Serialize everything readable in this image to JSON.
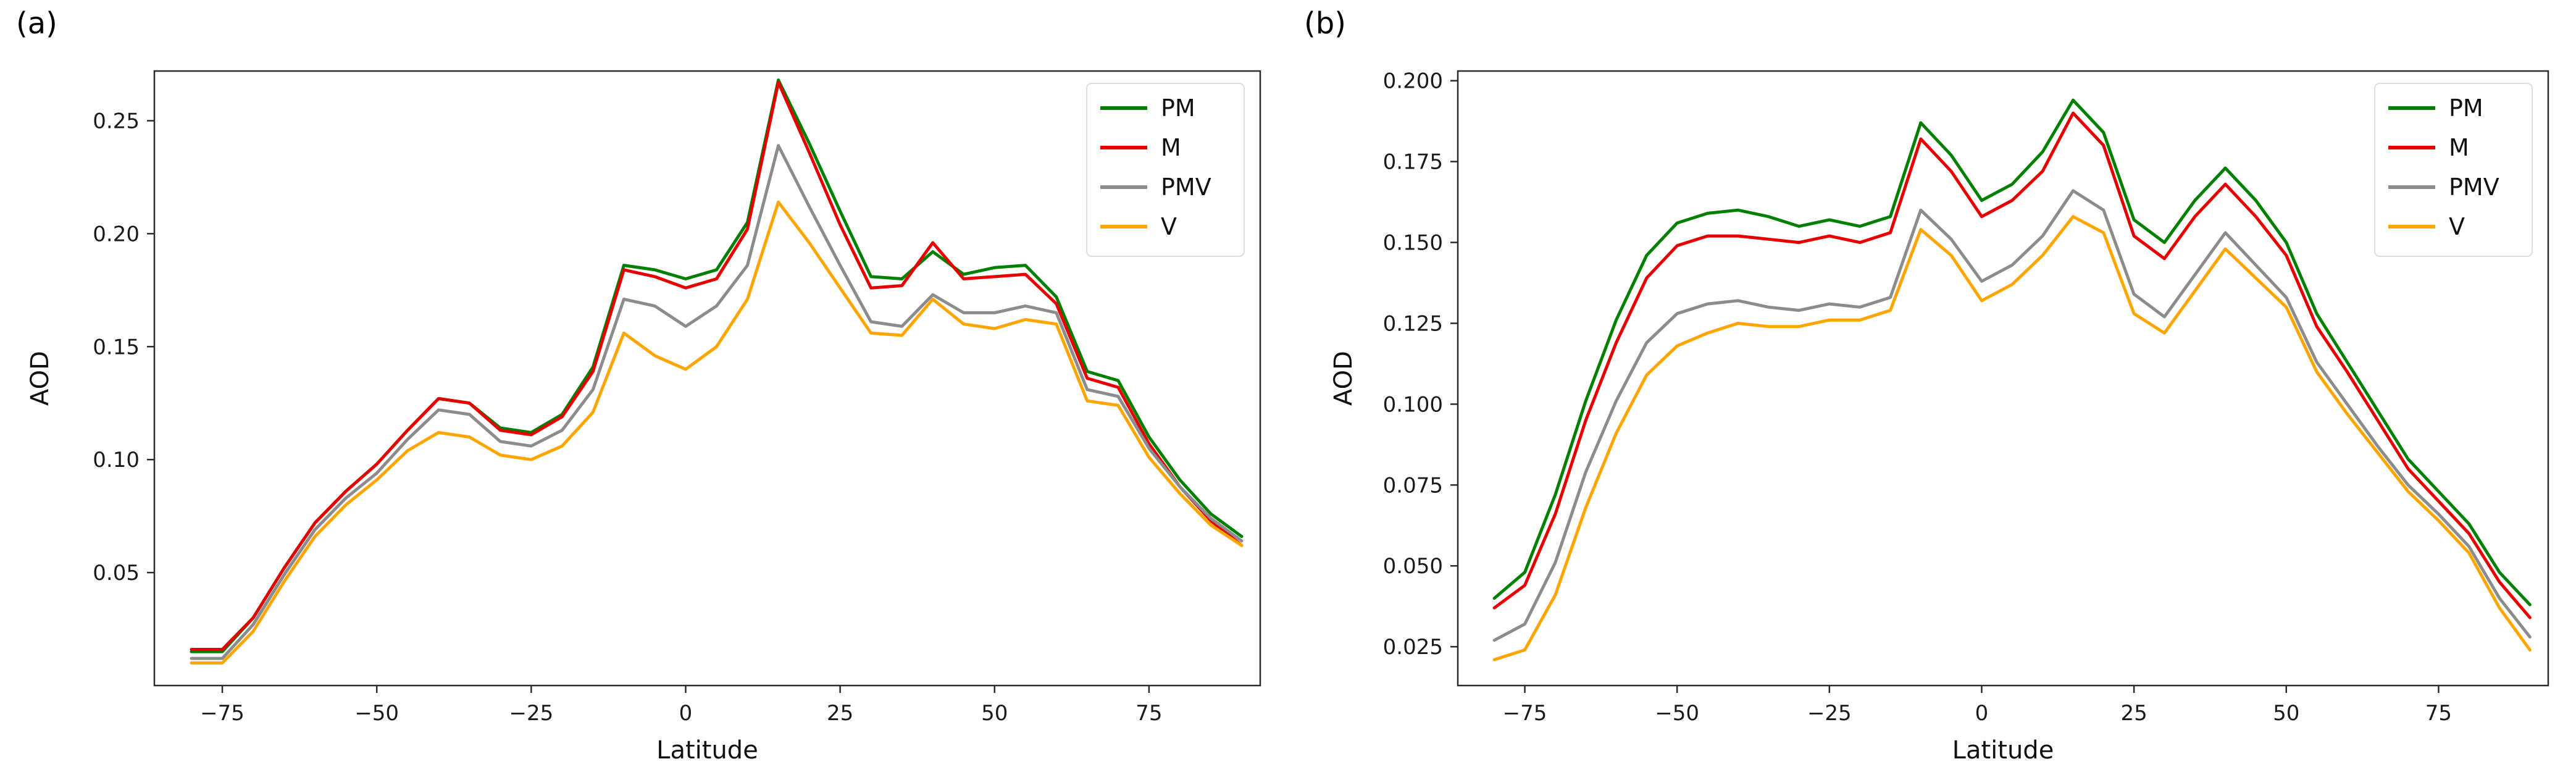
{
  "chart_data": [
    {
      "type": "line",
      "panel_label": "(a)",
      "title": "",
      "xlabel": "Latitude",
      "ylabel": "AOD",
      "xlim": [
        -86,
        93
      ],
      "ylim": [
        0.0,
        0.272
      ],
      "grid": false,
      "legend_position": "upper right",
      "xticks": [
        -75,
        -50,
        -25,
        0,
        25,
        50,
        75
      ],
      "xtick_labels": [
        "−75",
        "−50",
        "−25",
        "0",
        "25",
        "50",
        "75"
      ],
      "yticks": [
        0.05,
        0.1,
        0.15,
        0.2,
        0.25
      ],
      "ytick_labels": [
        "0.05",
        "0.10",
        "0.15",
        "0.20",
        "0.25"
      ],
      "margin": {
        "l": 250,
        "r": 45,
        "t": 115,
        "b": 140
      },
      "x": [
        -80,
        -75,
        -70,
        -65,
        -60,
        -55,
        -50,
        -45,
        -40,
        -35,
        -30,
        -25,
        -20,
        -15,
        -10,
        -5,
        0,
        5,
        10,
        15,
        20,
        25,
        30,
        35,
        40,
        45,
        50,
        55,
        60,
        65,
        70,
        75,
        80,
        85,
        90
      ],
      "series": [
        {
          "name": "PM",
          "color": "#008000",
          "values": [
            0.015,
            0.015,
            0.03,
            0.052,
            0.072,
            0.086,
            0.098,
            0.113,
            0.127,
            0.125,
            0.114,
            0.112,
            0.12,
            0.141,
            0.186,
            0.184,
            0.18,
            0.184,
            0.205,
            0.268,
            0.24,
            0.21,
            0.181,
            0.18,
            0.192,
            0.182,
            0.185,
            0.186,
            0.172,
            0.139,
            0.135,
            0.11,
            0.091,
            0.076,
            0.066
          ]
        },
        {
          "name": "M",
          "color": "#e60000",
          "values": [
            0.016,
            0.016,
            0.03,
            0.052,
            0.072,
            0.086,
            0.098,
            0.113,
            0.127,
            0.125,
            0.113,
            0.111,
            0.119,
            0.139,
            0.184,
            0.181,
            0.176,
            0.18,
            0.202,
            0.267,
            0.236,
            0.204,
            0.176,
            0.177,
            0.196,
            0.18,
            0.181,
            0.182,
            0.169,
            0.136,
            0.132,
            0.107,
            0.088,
            0.073,
            0.062
          ]
        },
        {
          "name": "PMV",
          "color": "#8c8c8c",
          "values": [
            0.012,
            0.012,
            0.027,
            0.049,
            0.069,
            0.083,
            0.094,
            0.109,
            0.122,
            0.12,
            0.108,
            0.106,
            0.113,
            0.131,
            0.171,
            0.168,
            0.159,
            0.168,
            0.186,
            0.239,
            0.212,
            0.186,
            0.161,
            0.159,
            0.173,
            0.165,
            0.165,
            0.168,
            0.165,
            0.131,
            0.128,
            0.105,
            0.088,
            0.074,
            0.064
          ]
        },
        {
          "name": "V",
          "color": "#ffa500",
          "values": [
            0.01,
            0.01,
            0.024,
            0.046,
            0.066,
            0.08,
            0.091,
            0.104,
            0.112,
            0.11,
            0.102,
            0.1,
            0.106,
            0.121,
            0.156,
            0.146,
            0.14,
            0.15,
            0.171,
            0.214,
            0.196,
            0.176,
            0.156,
            0.155,
            0.171,
            0.16,
            0.158,
            0.162,
            0.16,
            0.126,
            0.124,
            0.101,
            0.085,
            0.071,
            0.062
          ]
        }
      ]
    },
    {
      "type": "line",
      "panel_label": "(b)",
      "title": "",
      "xlabel": "Latitude",
      "ylabel": "AOD",
      "xlim": [
        -86,
        93
      ],
      "ylim": [
        0.013,
        0.203
      ],
      "grid": false,
      "legend_position": "upper right",
      "xticks": [
        -75,
        -50,
        -25,
        0,
        25,
        50,
        75
      ],
      "xtick_labels": [
        "−75",
        "−50",
        "−25",
        "0",
        "25",
        "50",
        "75"
      ],
      "yticks": [
        0.025,
        0.05,
        0.075,
        0.1,
        0.125,
        0.15,
        0.175,
        0.2
      ],
      "ytick_labels": [
        "0.025",
        "0.050",
        "0.075",
        "0.100",
        "0.125",
        "0.150",
        "0.175",
        "0.200"
      ],
      "margin": {
        "l": 275,
        "r": 45,
        "t": 115,
        "b": 140
      },
      "x": [
        -80,
        -75,
        -70,
        -65,
        -60,
        -55,
        -50,
        -45,
        -40,
        -35,
        -30,
        -25,
        -20,
        -15,
        -10,
        -5,
        0,
        5,
        10,
        15,
        20,
        25,
        30,
        35,
        40,
        45,
        50,
        55,
        60,
        65,
        70,
        75,
        80,
        85,
        90
      ],
      "series": [
        {
          "name": "PM",
          "color": "#008000",
          "values": [
            0.04,
            0.048,
            0.072,
            0.101,
            0.126,
            0.146,
            0.156,
            0.159,
            0.16,
            0.158,
            0.155,
            0.157,
            0.155,
            0.158,
            0.187,
            0.177,
            0.163,
            0.168,
            0.178,
            0.194,
            0.184,
            0.157,
            0.15,
            0.163,
            0.173,
            0.163,
            0.15,
            0.128,
            0.113,
            0.098,
            0.083,
            0.073,
            0.063,
            0.048,
            0.038
          ]
        },
        {
          "name": "M",
          "color": "#e60000",
          "values": [
            0.037,
            0.044,
            0.066,
            0.095,
            0.119,
            0.139,
            0.149,
            0.152,
            0.152,
            0.151,
            0.15,
            0.152,
            0.15,
            0.153,
            0.182,
            0.172,
            0.158,
            0.163,
            0.172,
            0.19,
            0.18,
            0.152,
            0.145,
            0.158,
            0.168,
            0.158,
            0.146,
            0.124,
            0.11,
            0.095,
            0.08,
            0.07,
            0.06,
            0.045,
            0.034
          ]
        },
        {
          "name": "PMV",
          "color": "#8c8c8c",
          "values": [
            0.027,
            0.032,
            0.051,
            0.079,
            0.101,
            0.119,
            0.128,
            0.131,
            0.132,
            0.13,
            0.129,
            0.131,
            0.13,
            0.133,
            0.16,
            0.151,
            0.138,
            0.143,
            0.152,
            0.166,
            0.16,
            0.134,
            0.127,
            0.14,
            0.153,
            0.143,
            0.133,
            0.113,
            0.1,
            0.087,
            0.075,
            0.066,
            0.056,
            0.04,
            0.028
          ]
        },
        {
          "name": "V",
          "color": "#ffa500",
          "values": [
            0.021,
            0.024,
            0.041,
            0.068,
            0.091,
            0.109,
            0.118,
            0.122,
            0.125,
            0.124,
            0.124,
            0.126,
            0.126,
            0.129,
            0.154,
            0.146,
            0.132,
            0.137,
            0.146,
            0.158,
            0.153,
            0.128,
            0.122,
            0.135,
            0.148,
            0.139,
            0.13,
            0.11,
            0.097,
            0.085,
            0.073,
            0.064,
            0.054,
            0.037,
            0.024
          ]
        }
      ]
    }
  ]
}
